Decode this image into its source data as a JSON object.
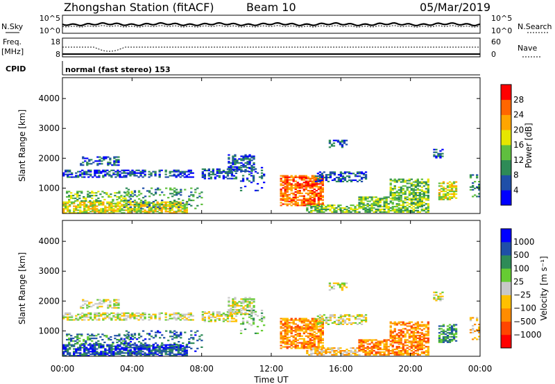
{
  "header": {
    "title": "Zhongshan Station (fitACF)",
    "beam": "Beam 10",
    "date": "05/Mar/2019"
  },
  "panels": {
    "nsky": {
      "left_label": "N.Sky",
      "left_ticks": [
        "10^5",
        "10^0"
      ],
      "right_ticks": [
        "10^5",
        "10^0"
      ],
      "right_label": "N.Search"
    },
    "freq": {
      "left_label": "Freq.",
      "left_unit": "[MHz]",
      "left_ticks": [
        "18",
        "8"
      ],
      "right_ticks": [
        "60",
        "0"
      ],
      "right_label": "Nave"
    },
    "cpid": {
      "label": "CPID",
      "text": "normal (fast stereo) 153"
    }
  },
  "colors": {
    "power": [
      "#0000ff",
      "#1f4fa8",
      "#2e8b57",
      "#5fbf3f",
      "#e6e600",
      "#ffa500",
      "#ff6600",
      "#ff0000"
    ],
    "velocity": [
      "#ff0000",
      "#ff4500",
      "#ff8c00",
      "#ffc000",
      "#c8c8c8",
      "#66cc33",
      "#2e8b57",
      "#1f4fa8",
      "#0000ff"
    ]
  },
  "chart_data": [
    {
      "type": "heatmap",
      "name": "power",
      "ylabel": "Slant Range [km]",
      "yticks": [
        "1000",
        "2000",
        "3000",
        "4000"
      ],
      "ylim": [
        150,
        4700
      ],
      "xlim": [
        0,
        24
      ],
      "colorbar_label": "Power [dB]",
      "colorbar_ticks": [
        "4",
        "8",
        "12",
        "16",
        "20",
        "24",
        "28"
      ],
      "colorbar_range": [
        0,
        32
      ]
    },
    {
      "type": "heatmap",
      "name": "velocity",
      "ylabel": "Slant Range [km]",
      "yticks": [
        "1000",
        "2000",
        "3000",
        "4000"
      ],
      "ylim": [
        150,
        4700
      ],
      "xlim": [
        0,
        24
      ],
      "colorbar_label": "Velocity [m s⁻¹]",
      "colorbar_ticks": [
        "1000",
        "500",
        "100",
        "25",
        "−25",
        "−100",
        "−500",
        "−1000"
      ]
    }
  ],
  "x_axis": {
    "ticks": [
      "00:00",
      "04:00",
      "08:00",
      "12:00",
      "16:00",
      "20:00",
      "00:00"
    ],
    "label": "Time UT"
  }
}
